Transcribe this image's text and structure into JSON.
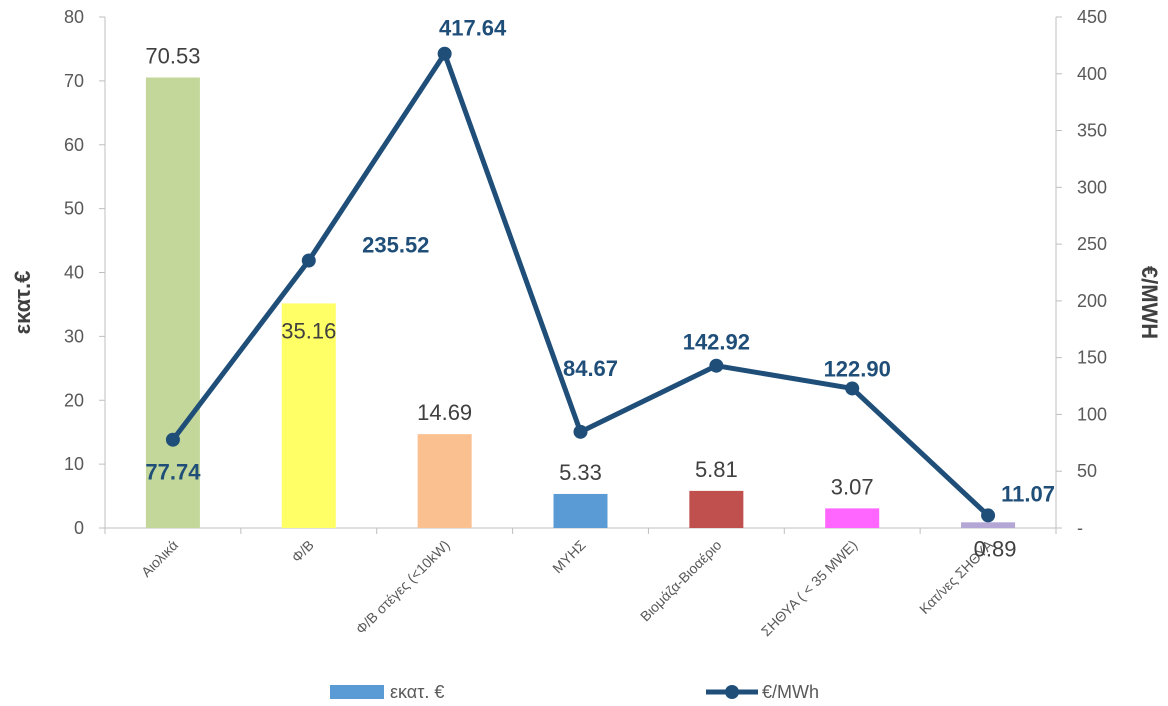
{
  "chart_data": {
    "type": "bar",
    "categories": [
      "Αιολικά",
      "Φ/Β",
      "Φ/Β στέγες (<10kW)",
      "ΜΥΗΣ",
      "Βιομάζα-Βιοαέριο",
      "ΣΗΘΥΑ ( < 35 MWE)",
      "Κατ/νες ΣΗΘΥΑ"
    ],
    "series": [
      {
        "name": "εκατ. €",
        "type": "bar",
        "axis": "left",
        "values": [
          70.53,
          35.16,
          14.69,
          5.33,
          5.81,
          3.07,
          0.89
        ],
        "labels": [
          "70.53",
          "35.16",
          "14.69",
          "5.33",
          "5.81",
          "3.07",
          "0.89"
        ],
        "colors": [
          "#C4D79B",
          "#FFFF66",
          "#FAC090",
          "#5B9BD5",
          "#C0504D",
          "#FF66FF",
          "#B4A7D6"
        ]
      },
      {
        "name": "€/MWh",
        "type": "line",
        "axis": "right",
        "values": [
          77.74,
          235.52,
          417.64,
          84.67,
          142.92,
          122.9,
          11.07
        ],
        "labels": [
          "77.74",
          "235.52",
          "417.64",
          "84.67",
          "142.92",
          "122.90",
          "11.07"
        ],
        "color": "#1F4E79"
      }
    ],
    "ylabel": "εκατ.€",
    "y2label": "€/MWH",
    "ylim": [
      0,
      80
    ],
    "y2lim": [
      0,
      450
    ],
    "yticks": [
      "0",
      "10",
      "20",
      "30",
      "40",
      "50",
      "60",
      "70",
      "80"
    ],
    "y2ticks": [
      "-",
      "50",
      "100",
      "150",
      "200",
      "250",
      "300",
      "350",
      "400",
      "450"
    ],
    "grid": false,
    "legend_position": "bottom"
  }
}
